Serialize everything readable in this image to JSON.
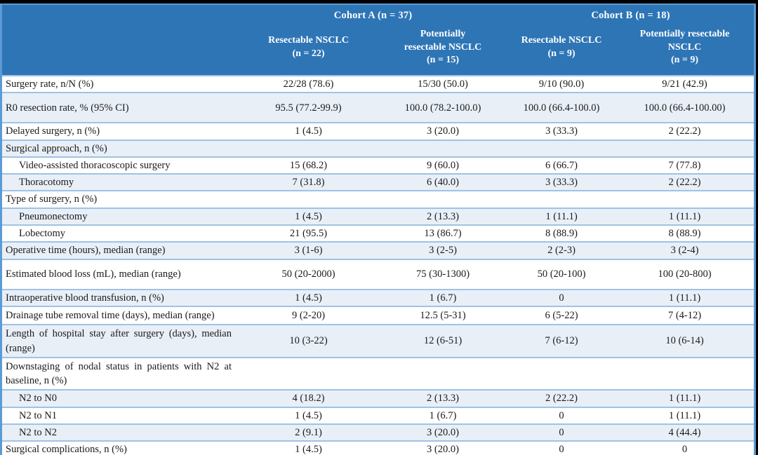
{
  "colors": {
    "header_bg": "#2E75B6",
    "header_text": "#FFFFFF",
    "row_shaded_bg": "#E9EFF7",
    "row_plain_bg": "#FFFFFF",
    "separator": "#9DC3E6",
    "frame": "#5B9BD5",
    "page_bg": "#000000"
  },
  "header": {
    "cohort_a": "Cohort A (n = 37)",
    "cohort_b": "Cohort B (n = 18)",
    "columns": [
      "Resectable NSCLC\n(n = 22)",
      "Potentially\nresectable NSCLC\n(n = 15)",
      "Resectable NSCLC\n(n = 9)",
      "Potentially resectable\nNSCLC\n(n = 9)"
    ]
  },
  "rows": [
    {
      "label": "Surgery rate, n/N (%)",
      "indent": false,
      "tall": false,
      "values": [
        "22/28 (78.6)",
        "15/30 (50.0)",
        "9/10 (90.0)",
        "9/21 (42.9)"
      ]
    },
    {
      "label": "R0 resection rate, % (95% CI)",
      "indent": false,
      "tall": true,
      "values": [
        "95.5 (77.2-99.9)",
        "100.0 (78.2-100.0)",
        "100.0 (66.4-100.0)",
        "100.0 (66.4-100.00)"
      ]
    },
    {
      "label": "Delayed surgery, n (%)",
      "indent": false,
      "tall": false,
      "values": [
        "1 (4.5)",
        "3 (20.0)",
        "3 (33.3)",
        "2 (22.2)"
      ]
    },
    {
      "label": "Surgical approach, n (%)",
      "indent": false,
      "tall": false,
      "values": [
        "",
        "",
        "",
        ""
      ]
    },
    {
      "label": "Video-assisted thoracoscopic surgery",
      "indent": true,
      "tall": false,
      "values": [
        "15 (68.2)",
        "9 (60.0)",
        "6 (66.7)",
        "7 (77.8)"
      ]
    },
    {
      "label": "Thoracotomy",
      "indent": true,
      "tall": false,
      "values": [
        "7 (31.8)",
        "6 (40.0)",
        "3 (33.3)",
        "2 (22.2)"
      ]
    },
    {
      "label": "Type of surgery, n (%)",
      "indent": false,
      "tall": false,
      "values": [
        "",
        "",
        "",
        ""
      ]
    },
    {
      "label": "Pneumonectomy",
      "indent": true,
      "tall": false,
      "values": [
        "1 (4.5)",
        "2 (13.3)",
        "1 (11.1)",
        "1 (11.1)"
      ]
    },
    {
      "label": "Lobectomy",
      "indent": true,
      "tall": false,
      "values": [
        "21 (95.5)",
        "13 (86.7)",
        "8 (88.9)",
        "8 (88.9)"
      ]
    },
    {
      "label": "Operative time (hours), median (range)",
      "indent": false,
      "tall": false,
      "values": [
        "3 (1-6)",
        "3 (2-5)",
        "2 (2-3)",
        "3 (2-4)"
      ]
    },
    {
      "label": "Estimated blood loss (mL), median (range)",
      "indent": false,
      "tall": true,
      "values": [
        "50 (20-2000)",
        "75 (30-1300)",
        "50 (20-100)",
        "100 (20-800)"
      ]
    },
    {
      "label": "Intraoperative blood transfusion, n (%)",
      "indent": false,
      "tall": false,
      "values": [
        "1 (4.5)",
        "1 (6.7)",
        "0",
        "1 (11.1)"
      ]
    },
    {
      "label": "Drainage tube removal time (days), median (range)",
      "indent": false,
      "tall": false,
      "values": [
        "9 (2-20)",
        "12.5 (5-31)",
        "6 (5-22)",
        "7 (4-12)"
      ]
    },
    {
      "label": "Length of hospital stay after surgery (days), median (range)",
      "indent": false,
      "tall": false,
      "values": [
        "10 (3-22)",
        "12 (6-51)",
        "7 (6-12)",
        "10 (6-14)"
      ]
    },
    {
      "label": "Downstaging of nodal status in patients with N2 at baseline, n (%)",
      "indent": false,
      "tall": false,
      "values": [
        "",
        "",
        "",
        ""
      ]
    },
    {
      "label": "N2 to N0",
      "indent": true,
      "tall": false,
      "values": [
        "4 (18.2)",
        "2 (13.3)",
        "2 (22.2)",
        "1 (11.1)"
      ]
    },
    {
      "label": "N2 to N1",
      "indent": true,
      "tall": false,
      "values": [
        "1 (4.5)",
        "1 (6.7)",
        "0",
        "1 (11.1)"
      ]
    },
    {
      "label": "N2 to N2",
      "indent": true,
      "tall": false,
      "values": [
        "2 (9.1)",
        "3 (20.0)",
        "0",
        "4 (44.4)"
      ]
    },
    {
      "label": "Surgical complications, n (%)",
      "indent": false,
      "tall": false,
      "values": [
        "1 (4.5)",
        "3 (20.0)",
        "0",
        "0"
      ]
    }
  ]
}
